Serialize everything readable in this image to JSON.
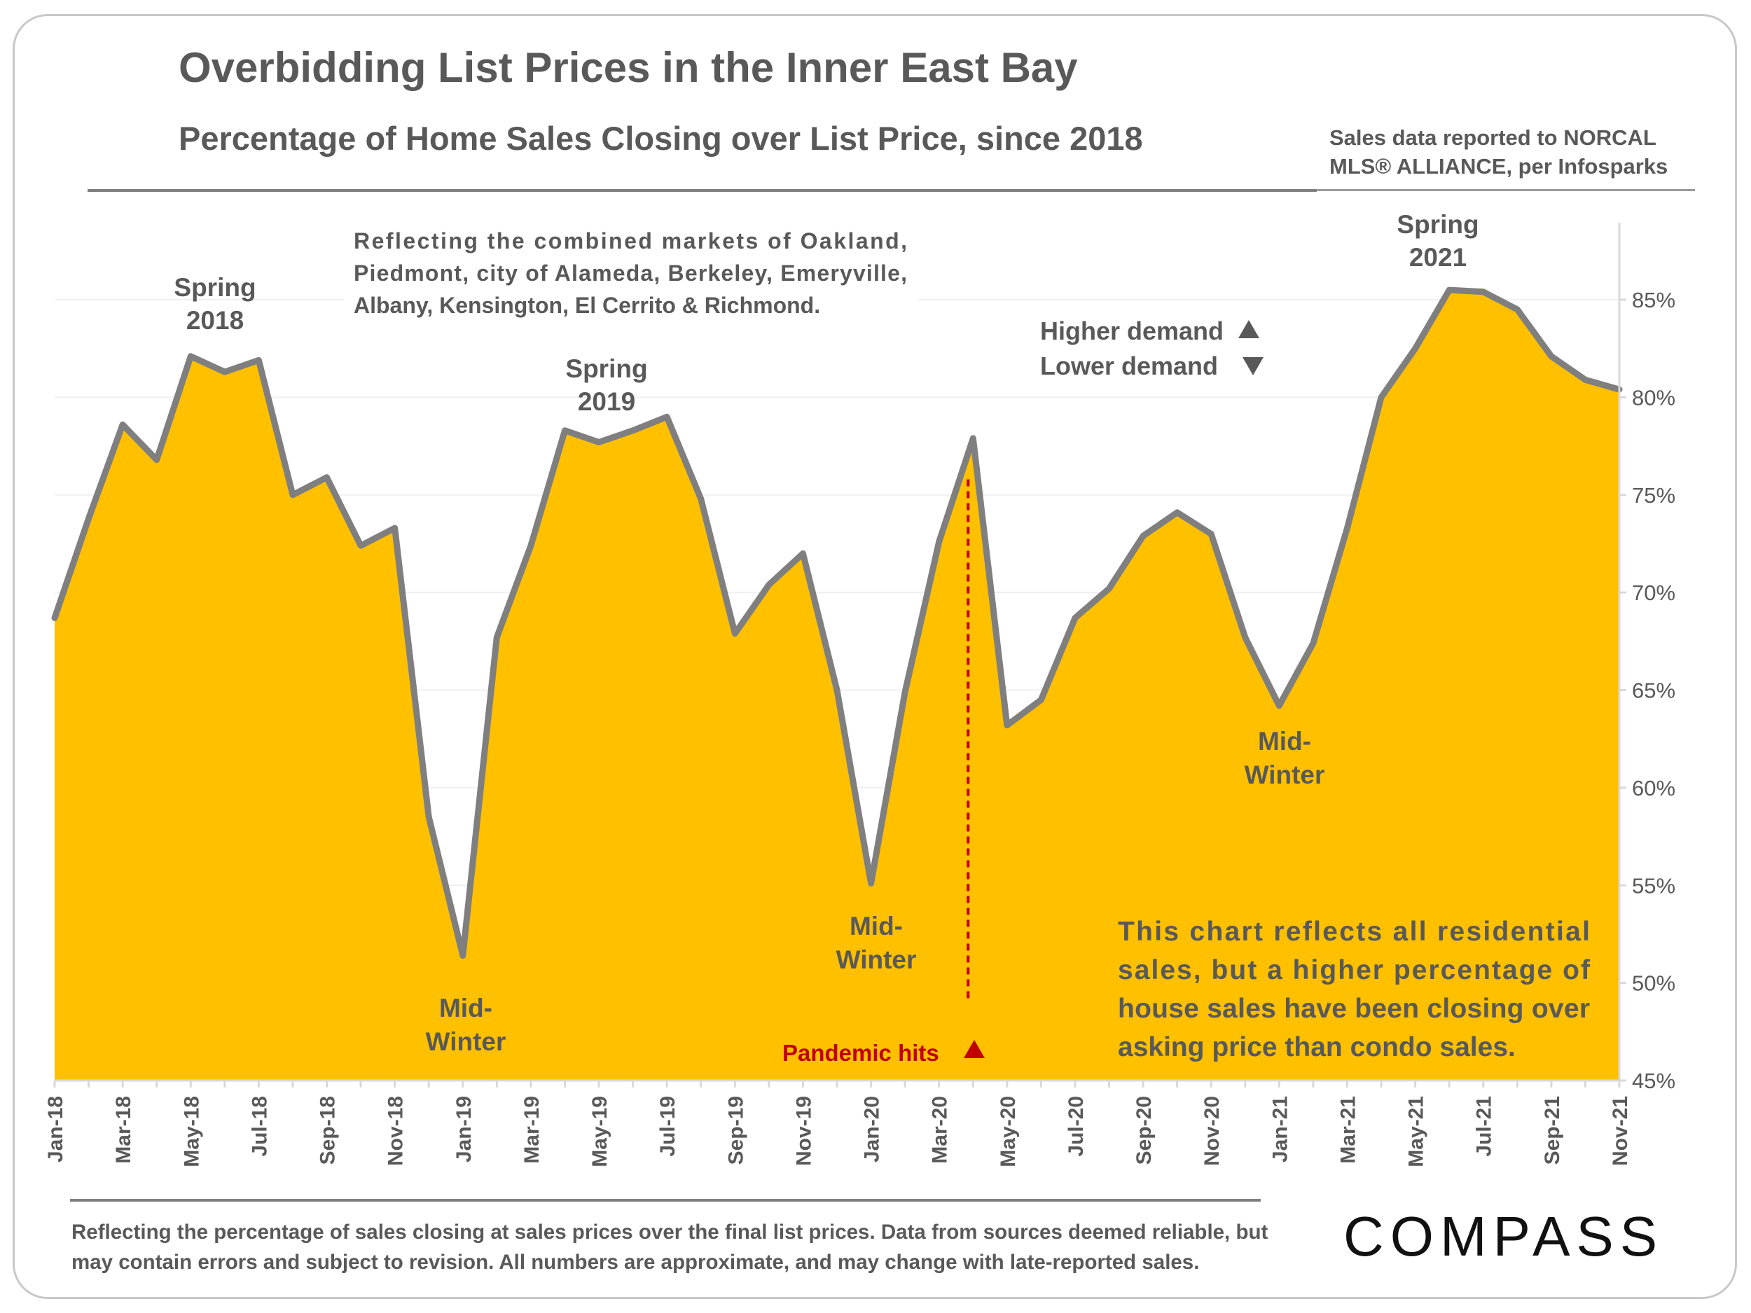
{
  "header": {
    "title": "Overbidding List Prices in the Inner East Bay",
    "subtitle": "Percentage of Home Sales Closing over List Price, since 2018",
    "source_line1": "Sales data reported to NORCAL",
    "source_line2": "MLS® ALLIANCE, per Infosparks"
  },
  "footer": {
    "note": "Reflecting the percentage of sales closing at sales prices over the final list prices. Data from sources deemed reliable, but may contain errors and subject to revision. All numbers are approximate, and may change with late-reported sales.",
    "logo": "COMPASS"
  },
  "colors": {
    "fill": "#FFC000",
    "line": "#7F7F7F",
    "pandemic": "#C00000",
    "text": "#595959"
  },
  "chart_data": {
    "type": "area",
    "title": "Overbidding List Prices in the Inner East Bay",
    "subtitle": "Percentage of Home Sales Closing over List Price, since 2018",
    "y_axis_position": "right",
    "ylim": [
      45,
      85
    ],
    "yticks": [
      "45%",
      "50%",
      "55%",
      "60%",
      "65%",
      "70%",
      "75%",
      "80%",
      "85%"
    ],
    "ytick_values": [
      45,
      50,
      55,
      60,
      65,
      70,
      75,
      80,
      85
    ],
    "grid": true,
    "x": [
      "Jan-18",
      "Feb-18",
      "Mar-18",
      "Apr-18",
      "May-18",
      "Jun-18",
      "Jul-18",
      "Aug-18",
      "Sep-18",
      "Oct-18",
      "Nov-18",
      "Dec-18",
      "Jan-19",
      "Feb-19",
      "Mar-19",
      "Apr-19",
      "May-19",
      "Jun-19",
      "Jul-19",
      "Aug-19",
      "Sep-19",
      "Oct-19",
      "Nov-19",
      "Dec-19",
      "Jan-20",
      "Feb-20",
      "Mar-20",
      "Apr-20",
      "May-20",
      "Jun-20",
      "Jul-20",
      "Aug-20",
      "Sep-20",
      "Oct-20",
      "Nov-20",
      "Dec-20",
      "Jan-21",
      "Feb-21",
      "Mar-21",
      "Apr-21",
      "May-21",
      "Jun-21",
      "Jul-21",
      "Aug-21",
      "Sep-21",
      "Oct-21",
      "Nov-21"
    ],
    "xtick_labels": [
      "Jan-18",
      "Mar-18",
      "May-18",
      "Jul-18",
      "Sep-18",
      "Nov-18",
      "Jan-19",
      "Mar-19",
      "May-19",
      "Jul-19",
      "Sep-19",
      "Nov-19",
      "Jan-20",
      "Mar-20",
      "May-20",
      "Jul-20",
      "Sep-20",
      "Nov-20",
      "Jan-21",
      "Mar-21",
      "May-21",
      "Jul-21",
      "Sep-21",
      "Nov-21"
    ],
    "series": [
      {
        "values": [
          68.7,
          73.8,
          78.6,
          76.8,
          82.1,
          81.3,
          81.9,
          75.0,
          75.9,
          72.4,
          73.3,
          58.5,
          51.4,
          67.7,
          72.4,
          78.3,
          77.7,
          78.3,
          79.0,
          74.8,
          67.9,
          70.4,
          72.0,
          65.0,
          55.1,
          64.9,
          72.6,
          77.9,
          63.2,
          64.5,
          68.7,
          70.2,
          72.9,
          74.1,
          73.0,
          67.7,
          64.2,
          67.4,
          73.3,
          80.0,
          82.5,
          85.5,
          85.4,
          84.5,
          82.1,
          80.9,
          80.4
        ]
      }
    ],
    "annotations": [
      {
        "line1": "Spring",
        "line2": "2018"
      },
      {
        "line1": "Spring",
        "line2": "2019"
      },
      {
        "line1": "Spring",
        "line2": "2021"
      },
      {
        "line1": "Mid-",
        "line2": "Winter"
      },
      {
        "line1": "Mid-",
        "line2": "Winter"
      },
      {
        "line1": "Mid-",
        "line2": "Winter"
      }
    ],
    "markets_note": {
      "line1": "Reflecting the combined markets of Oakland,",
      "line2": "Piedmont, city of Alameda, Berkeley, Emeryville,",
      "line3": "Albany, Kensington, El Cerrito & Richmond."
    },
    "demand_legend": {
      "higher": "Higher demand",
      "lower": "Lower demand"
    },
    "pandemic": {
      "label": "Pandemic hits",
      "x": "Apr-20"
    },
    "residential_note": {
      "line1": "This chart reflects all residential",
      "line2": "sales, but a higher percentage of",
      "line3": "house sales have been closing over",
      "line4": "asking price than condo sales."
    }
  }
}
